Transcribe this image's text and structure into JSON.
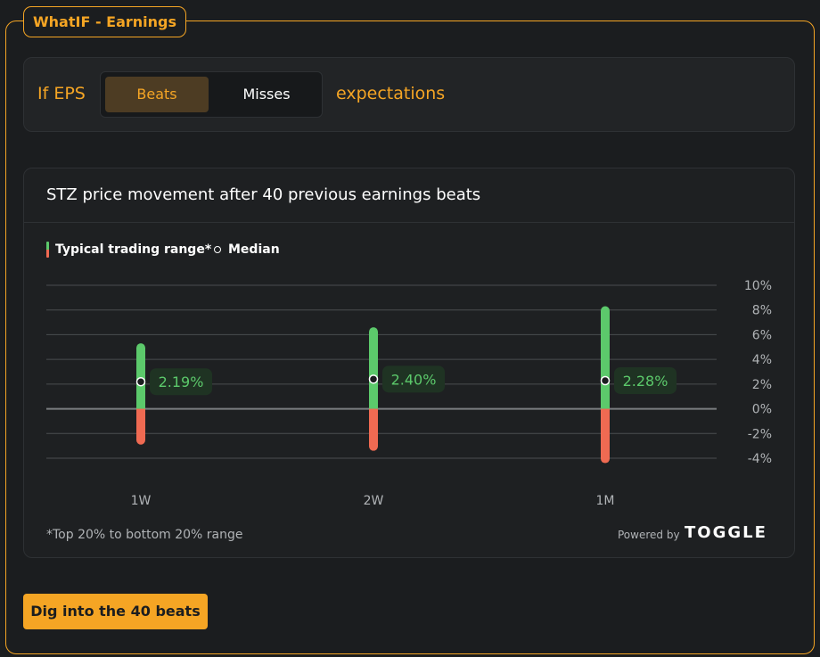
{
  "header": {
    "title": "WhatIF - Earnings"
  },
  "eps": {
    "prefix": "If EPS",
    "options": [
      "Beats",
      "Misses"
    ],
    "selected": "Beats",
    "suffix": "expectations"
  },
  "card": {
    "title": "STZ price movement after 40 previous earnings beats",
    "legend": {
      "range_label": "Typical trading range*",
      "median_label": "Median"
    },
    "footnote": "*Top 20% to bottom 20% range",
    "powered_by": "Powered by",
    "brand": "TOGGLE"
  },
  "cta": {
    "label": "Dig into the 40 beats"
  },
  "colors": {
    "accent": "#f5a524",
    "positive": "#5cc96b",
    "negative": "#ef6a52",
    "background": "#1b1d1f"
  },
  "chart_data": {
    "type": "range",
    "categories": [
      "1W",
      "2W",
      "1M"
    ],
    "series": [
      {
        "name": "Typical trading range*",
        "high": [
          5.3,
          6.6,
          8.3
        ],
        "low": [
          -2.9,
          -3.4,
          -4.4
        ]
      },
      {
        "name": "Median",
        "values": [
          2.19,
          2.4,
          2.28
        ]
      }
    ],
    "data_labels": [
      "2.19%",
      "2.40%",
      "2.28%"
    ],
    "yticks": [
      10,
      8,
      6,
      4,
      2,
      0,
      -2,
      -4
    ],
    "ytick_labels": [
      "10%",
      "8%",
      "6%",
      "4%",
      "2%",
      "0%",
      "-2%",
      "-4%"
    ],
    "ylim": [
      -4,
      10
    ],
    "grid": true,
    "yaxis_side": "right",
    "legend_position": "top-left"
  }
}
